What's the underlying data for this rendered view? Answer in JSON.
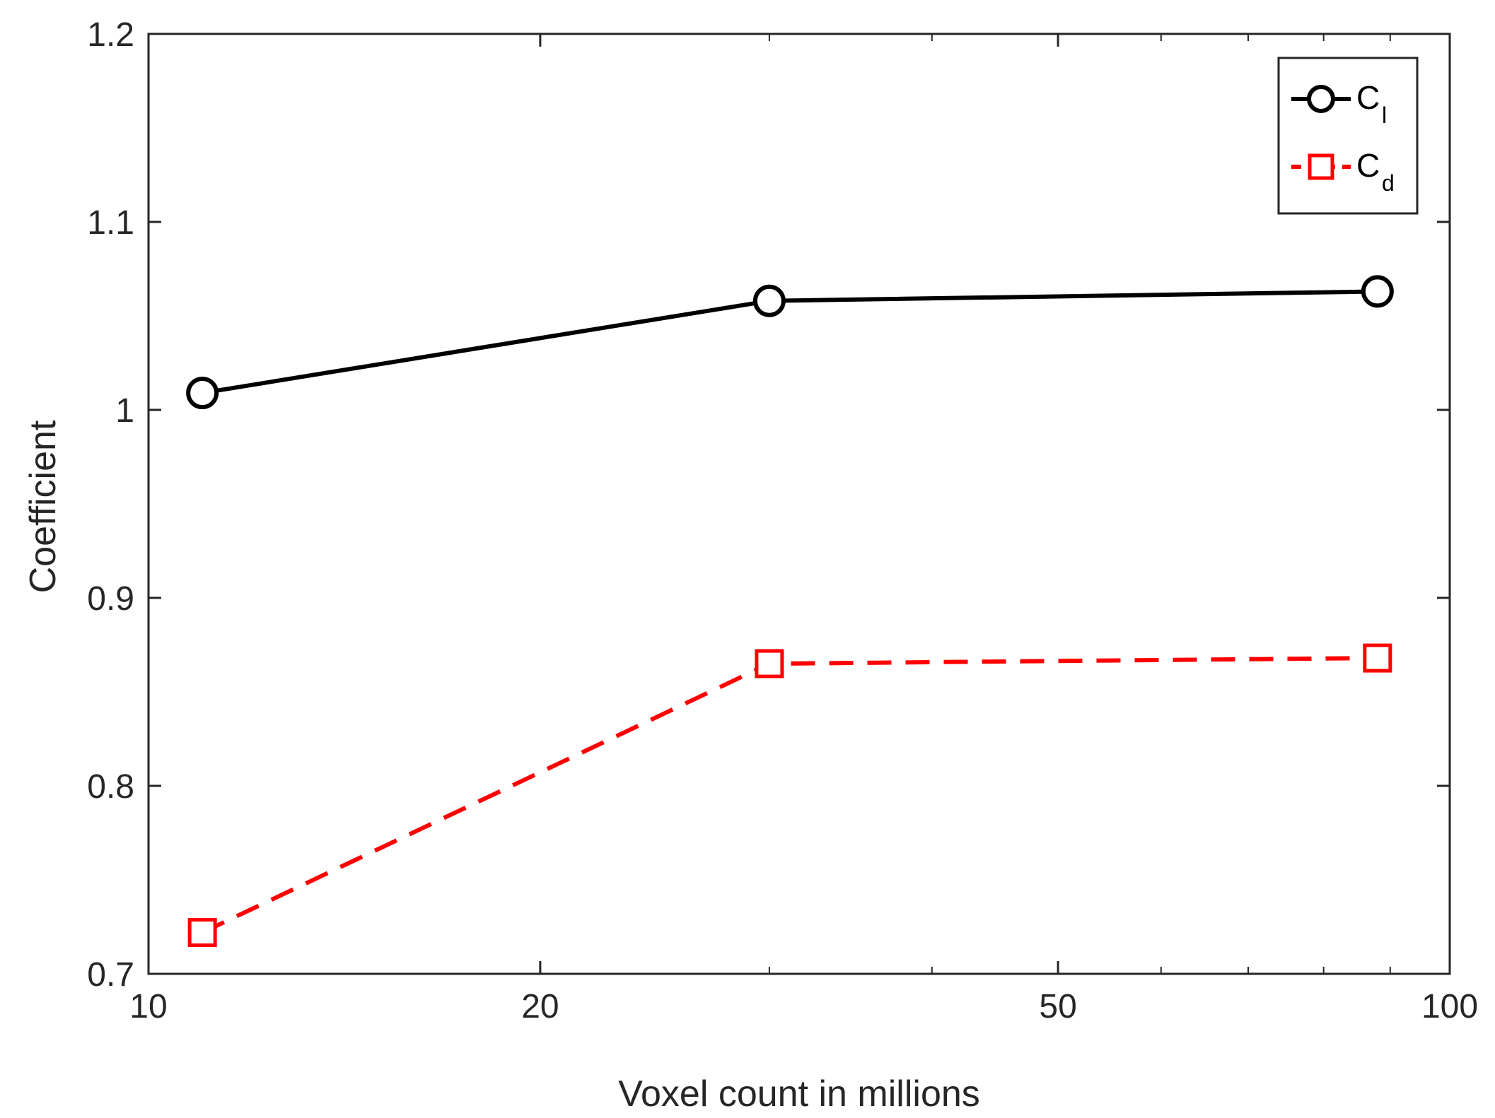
{
  "chart_data": {
    "type": "line",
    "xscale": "log",
    "xlabel": "Voxel count in millions",
    "ylabel": "Coefficient",
    "xlim": [
      10,
      100
    ],
    "ylim": [
      0.7,
      1.2
    ],
    "xticks": [
      10,
      20,
      50,
      100
    ],
    "xtick_labels": [
      "10",
      "20",
      "50",
      "100"
    ],
    "yticks": [
      0.7,
      0.8,
      0.9,
      1.0,
      1.1,
      1.2
    ],
    "ytick_labels": [
      "0.7",
      "0.8",
      "0.9",
      "1",
      "1.1",
      "1.2"
    ],
    "grid": false,
    "legend_position": "top-right",
    "series": [
      {
        "name": "C",
        "subscript": "l",
        "color": "#000000",
        "line_style": "solid",
        "marker": "circle",
        "x": [
          11.0,
          30.0,
          88.0
        ],
        "y": [
          1.009,
          1.058,
          1.063
        ]
      },
      {
        "name": "C",
        "subscript": "d",
        "color": "#ff0000",
        "line_style": "dashed",
        "marker": "square",
        "x": [
          11.0,
          30.0,
          88.0
        ],
        "y": [
          0.722,
          0.865,
          0.868
        ]
      }
    ]
  }
}
